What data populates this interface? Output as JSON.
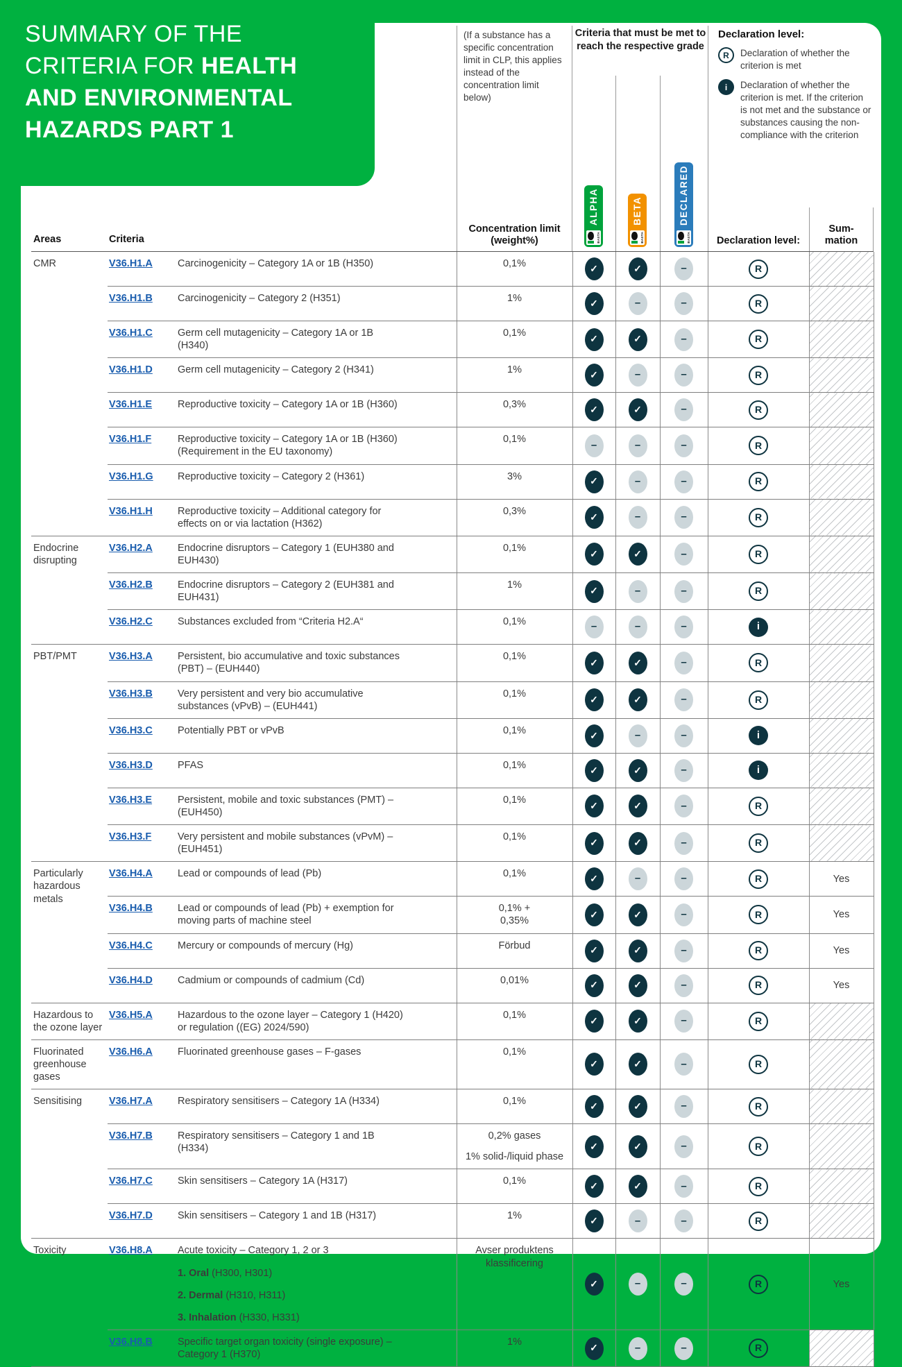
{
  "page": {
    "title_lines": [
      {
        "light": "SUMMARY OF THE",
        "bold": ""
      },
      {
        "light": "CRITERIA FOR ",
        "bold": "HEALTH"
      },
      {
        "light": "",
        "bold": "AND ENVIRONMENTAL"
      },
      {
        "light": "",
        "bold": "HAZARDS PART 1"
      }
    ]
  },
  "colors": {
    "page_green": "#00B140",
    "alpha_green": "#00A33C",
    "beta_orange": "#F29100",
    "declared_blue": "#2B7CBB",
    "navy": "#0E3440",
    "dash_gray": "#CCD6DA",
    "link_blue": "#1A5DAE"
  },
  "header": {
    "note": "(If a substance has a specific concentration limit in CLP, this applies instead of the concentration limit below)",
    "grade_heading": "Criteria that must be met to reach the respective grade",
    "grades": [
      {
        "label": "ALPHA",
        "color_key": "alpha_green"
      },
      {
        "label": "BETA",
        "color_key": "beta_orange"
      },
      {
        "label": "DECLARED",
        "color_key": "declared_blue"
      }
    ],
    "logo_text": "BASTA",
    "legend": {
      "title": "Declaration level:",
      "r_symbol": "R",
      "r_text": "Declaration of whether the criterion is met",
      "i_symbol": "i",
      "i_text": "Declaration of whether the criterion is met. If the criterion is not met and the substance or substances causing the non-compliance with the criterion"
    }
  },
  "columns": {
    "areas": "Areas",
    "criteria": "Criteria",
    "conc": "Concentration limit (weight%)",
    "level": "Declaration level:",
    "summation_lines": [
      "Sum-",
      "mation"
    ]
  },
  "table": {
    "rows": [
      {
        "area": "CMR",
        "area_rowspan": 8,
        "code": "V36.H1.A",
        "desc": [
          {
            "text": "Carcinogenicity – Category 1A or 1B (H350)"
          }
        ],
        "conc": [
          "0,1%"
        ],
        "alpha": "check",
        "beta": "check",
        "declared": "dash",
        "level": "R",
        "summation": null
      },
      {
        "code": "V36.H1.B",
        "desc": [
          {
            "text": "Carcinogenicity – Category 2 (H351)"
          }
        ],
        "conc": [
          "1%"
        ],
        "alpha": "check",
        "beta": "dash",
        "declared": "dash",
        "level": "R",
        "summation": null
      },
      {
        "code": "V36.H1.C",
        "desc": [
          {
            "text": "Germ cell mutagenicity – Category 1A or 1B (H340)"
          }
        ],
        "conc": [
          "0,1%"
        ],
        "alpha": "check",
        "beta": "check",
        "declared": "dash",
        "level": "R",
        "summation": null
      },
      {
        "code": "V36.H1.D",
        "desc": [
          {
            "text": "Germ cell mutagenicity – Category 2 (H341)"
          }
        ],
        "conc": [
          "1%"
        ],
        "alpha": "check",
        "beta": "dash",
        "declared": "dash",
        "level": "R",
        "summation": null
      },
      {
        "code": "V36.H1.E",
        "desc": [
          {
            "text": "Reproductive toxicity – Category 1A or 1B (H360)"
          }
        ],
        "conc": [
          "0,3%"
        ],
        "alpha": "check",
        "beta": "check",
        "declared": "dash",
        "level": "R",
        "summation": null
      },
      {
        "code": "V36.H1.F",
        "desc": [
          {
            "text": "Reproductive toxicity – Category 1A or 1B (H360) (Requirement in the EU taxonomy)"
          }
        ],
        "conc": [
          "0,1%"
        ],
        "alpha": "dash",
        "beta": "dash",
        "declared": "dash",
        "level": "R",
        "summation": null
      },
      {
        "code": "V36.H1.G",
        "desc": [
          {
            "text": "Reproductive toxicity – Category 2 (H361)"
          }
        ],
        "conc": [
          "3%"
        ],
        "alpha": "check",
        "beta": "dash",
        "declared": "dash",
        "level": "R",
        "summation": null
      },
      {
        "code": "V36.H1.H",
        "desc": [
          {
            "text": "Reproductive toxicity – Additional category for effects on or via lactation (H362)"
          }
        ],
        "conc": [
          "0,3%"
        ],
        "alpha": "check",
        "beta": "dash",
        "declared": "dash",
        "level": "R",
        "summation": null
      },
      {
        "area": "Endocrine disrupting",
        "area_rowspan": 3,
        "code": "V36.H2.A",
        "desc": [
          {
            "text": "Endocrine disruptors – Category 1 (EUH380 and EUH430)"
          }
        ],
        "conc": [
          "0,1%"
        ],
        "alpha": "check",
        "beta": "check",
        "declared": "dash",
        "level": "R",
        "summation": null
      },
      {
        "code": "V36.H2.B",
        "desc": [
          {
            "text": "Endocrine disruptors – Category 2 (EUH381 and EUH431)"
          }
        ],
        "conc": [
          "1%"
        ],
        "alpha": "check",
        "beta": "dash",
        "declared": "dash",
        "level": "R",
        "summation": null
      },
      {
        "code": "V36.H2.C",
        "desc": [
          {
            "text": "Substances excluded from “Criteria H2.A“"
          }
        ],
        "conc": [
          "0,1%"
        ],
        "alpha": "dash",
        "beta": "dash",
        "declared": "dash",
        "level": "i",
        "summation": null
      },
      {
        "area": "PBT/PMT",
        "area_rowspan": 6,
        "code": "V36.H3.A",
        "desc": [
          {
            "text": "Persistent, bio accumulative and toxic substances (PBT) – (EUH440)"
          }
        ],
        "conc": [
          "0,1%"
        ],
        "alpha": "check",
        "beta": "check",
        "declared": "dash",
        "level": "R",
        "summation": null
      },
      {
        "code": "V36.H3.B",
        "desc": [
          {
            "text": "Very persistent and very bio accumulative substances (vPvB) – (EUH441)"
          }
        ],
        "conc": [
          "0,1%"
        ],
        "alpha": "check",
        "beta": "check",
        "declared": "dash",
        "level": "R",
        "summation": null
      },
      {
        "code": "V36.H3.C",
        "desc": [
          {
            "text": "Potentially PBT or vPvB"
          }
        ],
        "conc": [
          "0,1%"
        ],
        "alpha": "check",
        "beta": "dash",
        "declared": "dash",
        "level": "i",
        "summation": null
      },
      {
        "code": "V36.H3.D",
        "desc": [
          {
            "text": "PFAS"
          }
        ],
        "conc": [
          "0,1%"
        ],
        "alpha": "check",
        "beta": "check",
        "declared": "dash",
        "level": "i",
        "summation": null
      },
      {
        "code": "V36.H3.E",
        "desc": [
          {
            "text": "Persistent, mobile and toxic substances (PMT) – (EUH450)"
          }
        ],
        "conc": [
          "0,1%"
        ],
        "alpha": "check",
        "beta": "check",
        "declared": "dash",
        "level": "R",
        "summation": null
      },
      {
        "code": "V36.H3.F",
        "desc": [
          {
            "text": "Very persistent and mobile substances (vPvM) – (EUH451)"
          }
        ],
        "conc": [
          "0,1%"
        ],
        "alpha": "check",
        "beta": "check",
        "declared": "dash",
        "level": "R",
        "summation": null
      },
      {
        "area": "Particularly hazardous metals",
        "area_rowspan": 4,
        "code": "V36.H4.A",
        "desc": [
          {
            "text": "Lead or compounds of lead (Pb)"
          }
        ],
        "conc": [
          "0,1%"
        ],
        "alpha": "check",
        "beta": "dash",
        "declared": "dash",
        "level": "R",
        "summation": "Yes"
      },
      {
        "code": "V36.H4.B",
        "desc": [
          {
            "text": "Lead or compounds of lead (Pb) + exemption for moving parts of machine steel"
          }
        ],
        "conc": [
          "0,1% +",
          "0,35%"
        ],
        "alpha": "check",
        "beta": "check",
        "declared": "dash",
        "level": "R",
        "summation": "Yes"
      },
      {
        "code": "V36.H4.C",
        "desc": [
          {
            "text": "Mercury or compounds of mercury (Hg)"
          }
        ],
        "conc": [
          "Förbud"
        ],
        "alpha": "check",
        "beta": "check",
        "declared": "dash",
        "level": "R",
        "summation": "Yes"
      },
      {
        "code": "V36.H4.D",
        "desc": [
          {
            "text": "Cadmium or compounds of cadmium (Cd)"
          }
        ],
        "conc": [
          "0,01%"
        ],
        "alpha": "check",
        "beta": "check",
        "declared": "dash",
        "level": "R",
        "summation": "Yes"
      },
      {
        "area": "Hazardous to the ozone layer",
        "area_rowspan": 1,
        "code": "V36.H5.A",
        "desc": [
          {
            "text": "Hazardous to the ozone layer – Category 1 (H420) or regulation ((EG) 2024/590)"
          }
        ],
        "conc": [
          "0,1%"
        ],
        "alpha": "check",
        "beta": "check",
        "declared": "dash",
        "level": "R",
        "summation": null
      },
      {
        "area": "Fluorinated greenhouse gases",
        "area_rowspan": 1,
        "code": "V36.H6.A",
        "desc": [
          {
            "text": "Fluorinated greenhouse gases – F-gases"
          }
        ],
        "conc": [
          "0,1%"
        ],
        "alpha": "check",
        "beta": "check",
        "declared": "dash",
        "level": "R",
        "summation": null
      },
      {
        "area": "Sensitising",
        "area_rowspan": 4,
        "code": "V36.H7.A",
        "desc": [
          {
            "text": "Respiratory sensitisers – Category 1A (H334)"
          }
        ],
        "conc": [
          "0,1%"
        ],
        "alpha": "check",
        "beta": "check",
        "declared": "dash",
        "level": "R",
        "summation": null
      },
      {
        "code": "V36.H7.B",
        "desc": [
          {
            "text": "Respiratory sensitisers – Category 1 and 1B (H334)"
          }
        ],
        "conc": [
          "0,2% gases",
          "1% solid-/liquid phase"
        ],
        "conc_gap": true,
        "alpha": "check",
        "beta": "check",
        "declared": "dash",
        "level": "R",
        "summation": null
      },
      {
        "code": "V36.H7.C",
        "desc": [
          {
            "text": "Skin sensitisers – Category 1A (H317)"
          }
        ],
        "conc": [
          "0,1%"
        ],
        "alpha": "check",
        "beta": "check",
        "declared": "dash",
        "level": "R",
        "summation": null
      },
      {
        "code": "V36.H7.D",
        "desc": [
          {
            "text": "Skin sensitisers – Category 1 and 1B (H317)"
          }
        ],
        "conc": [
          "1%"
        ],
        "alpha": "check",
        "beta": "dash",
        "declared": "dash",
        "level": "R",
        "summation": null
      },
      {
        "area": "Toxicity",
        "area_rowspan": 2,
        "code": "V36.H8.A",
        "desc": [
          {
            "text": "Acute toxicity – Category 1, 2 or 3"
          },
          {
            "bold": "1. Oral",
            "text": " (H300, H301)"
          },
          {
            "bold": "2. Dermal",
            "text": " (H310, H311)"
          },
          {
            "bold": "3. Inhalation",
            "text": " (H330, H331)"
          }
        ],
        "conc": [
          "Avser produktens klassificering"
        ],
        "alpha": "check",
        "beta": "dash",
        "declared": "dash",
        "level": "R",
        "summation": "Yes"
      },
      {
        "code": "V36.H8.B",
        "desc": [
          {
            "text": "Specific target organ toxicity (single exposure) – Category 1 (H370)"
          }
        ],
        "conc": [
          "1%"
        ],
        "alpha": "check",
        "beta": "dash",
        "declared": "dash",
        "level": "R",
        "summation": null
      }
    ]
  }
}
